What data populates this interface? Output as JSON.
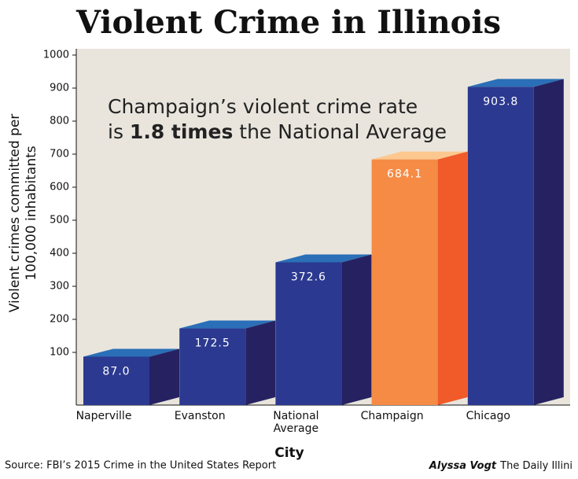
{
  "chart_data": {
    "type": "bar3d",
    "title": "Violent Crime in Illinois",
    "annotation": [
      "Champaign’s violent crime rate",
      "is ",
      "1.8 times",
      " the National Average"
    ],
    "x_label": "City",
    "y_label": "Violent crimes committed per 100,000 inhabitants",
    "categories": [
      "Naperville",
      "Evanston",
      "National Average",
      "Champaign",
      "Chicago"
    ],
    "values": [
      87.0,
      172.5,
      372.6,
      684.1,
      903.8
    ],
    "value_labels": [
      "87.0",
      "172.5",
      "372.6",
      "684.1",
      "903.8"
    ],
    "colors": [
      "#2b3990",
      "#2b3990",
      "#2b3990",
      "#f68b45",
      "#2b3990"
    ],
    "top_colors": [
      "#2a6fb7",
      "#2a6fb7",
      "#2a6fb7",
      "#fcc88f",
      "#2a6fb7"
    ],
    "side_colors": [
      "#262262",
      "#262262",
      "#262262",
      "#f15a29",
      "#262262"
    ],
    "ylim": [
      0,
      1000
    ],
    "yticks": [
      100,
      200,
      300,
      400,
      500,
      600,
      700,
      800,
      900,
      1000
    ],
    "source": "Source: FBI’s 2015 Crime in the United States Report",
    "credit_author": "Alyssa Vogt",
    "credit_outlet": "The Daily Illini"
  }
}
